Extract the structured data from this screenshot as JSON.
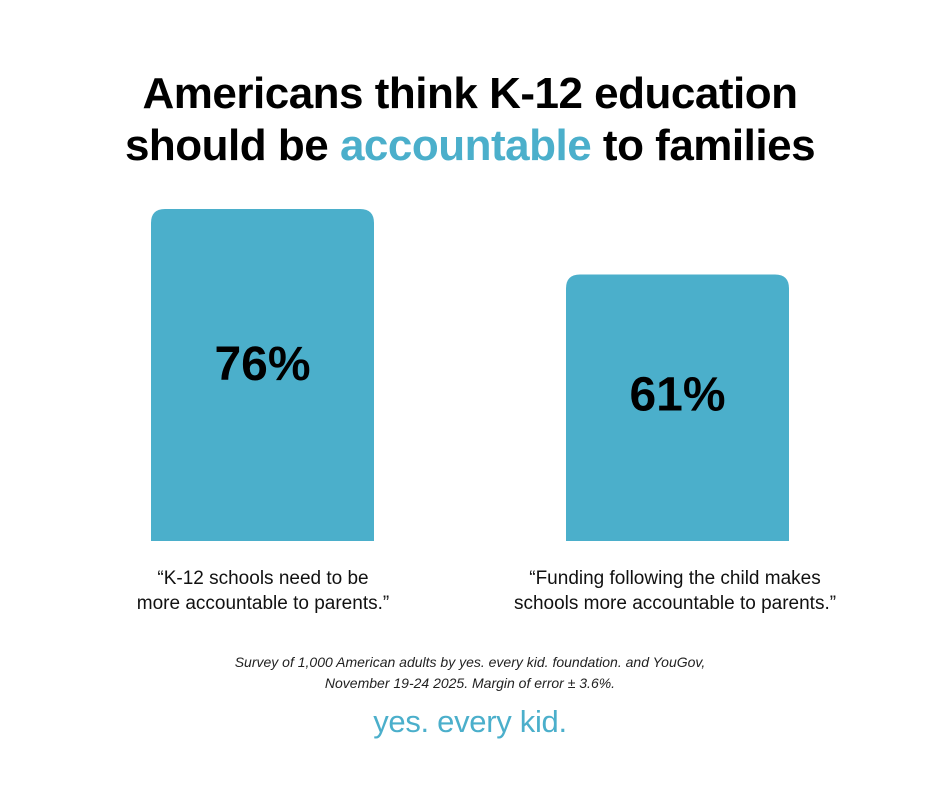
{
  "title": {
    "line1": "Americans think K-12 education",
    "line2_before": "should be ",
    "line2_accent": "accountable",
    "line2_after": " to families"
  },
  "colors": {
    "accent": "#4BAFCB",
    "bar": "#4BAFCB",
    "text": "#000000",
    "background": "#FFFFFF"
  },
  "chart_data": {
    "type": "bar",
    "categories": [
      "“K-12 schools need to be more accountable to parents.”",
      "“Funding following the child makes schools more accountable to parents.”"
    ],
    "values": [
      76,
      61
    ],
    "value_labels": [
      "76%",
      "61%"
    ],
    "ylim": [
      0,
      100
    ],
    "grid": false,
    "title": "Americans think K-12 education should be accountable to families",
    "xlabel": "",
    "ylabel": ""
  },
  "labels": {
    "bar1_line1": "“K-12 schools need to be",
    "bar1_line2": "more accountable to parents.”",
    "bar2_line1": "“Funding following the child makes",
    "bar2_line2": "schools more accountable to parents.”"
  },
  "source": {
    "line1": "Survey of 1,000 American adults by yes. every kid. foundation. and YouGov,",
    "line2": "November 19-24 2025. Margin of error ± 3.6%."
  },
  "logo": {
    "text": "yes. every kid."
  }
}
